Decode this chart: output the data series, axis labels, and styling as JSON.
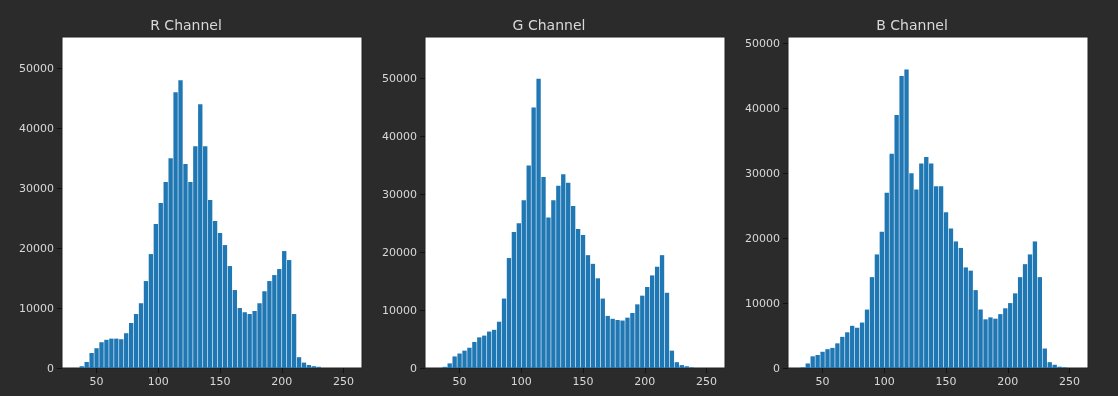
{
  "chart_data": [
    {
      "type": "histogram",
      "title": "R Channel",
      "color": "#1f77b4",
      "xlim": [
        22,
        265
      ],
      "xticks": [
        50,
        100,
        150,
        200,
        250
      ],
      "ylim": [
        0,
        55200
      ],
      "yticks": [
        0,
        10000,
        20000,
        30000,
        40000,
        50000
      ],
      "bins": [
        32,
        36,
        40,
        44,
        48,
        52,
        56,
        60,
        64,
        68,
        72,
        76,
        80,
        84,
        88,
        92,
        96,
        100,
        104,
        108,
        112,
        116,
        120,
        124,
        128,
        132,
        136,
        140,
        144,
        148,
        152,
        156,
        160,
        164,
        168,
        172,
        176,
        180,
        184,
        188,
        192,
        196,
        200,
        204,
        208,
        212,
        216,
        220,
        224,
        228,
        232,
        236
      ],
      "values": [
        0,
        300,
        1000,
        2500,
        3300,
        4300,
        4700,
        4900,
        4900,
        4800,
        5800,
        7500,
        9000,
        10800,
        14500,
        19000,
        24000,
        27500,
        31000,
        35000,
        46000,
        48000,
        34000,
        31000,
        37000,
        44000,
        37000,
        28000,
        24500,
        22500,
        20500,
        17000,
        13000,
        10000,
        9300,
        9000,
        9500,
        10800,
        12800,
        14500,
        15500,
        16500,
        19500,
        18000,
        9000,
        1800,
        900,
        500,
        300,
        200,
        0
      ]
    },
    {
      "type": "histogram",
      "title": "G Channel",
      "color": "#1f77b4",
      "xlim": [
        22,
        265
      ],
      "xticks": [
        50,
        100,
        150,
        200,
        250
      ],
      "ylim": [
        0,
        57200
      ],
      "yticks": [
        0,
        10000,
        20000,
        30000,
        40000,
        50000
      ],
      "bins": [
        32,
        36,
        40,
        44,
        48,
        52,
        56,
        60,
        64,
        68,
        72,
        76,
        80,
        84,
        88,
        92,
        96,
        100,
        104,
        108,
        112,
        116,
        120,
        124,
        128,
        132,
        136,
        140,
        144,
        148,
        152,
        156,
        160,
        164,
        168,
        172,
        176,
        180,
        184,
        188,
        192,
        196,
        200,
        204,
        208,
        212,
        216,
        220,
        224,
        228,
        232,
        236,
        240,
        244
      ],
      "values": [
        0,
        200,
        800,
        2000,
        2500,
        3000,
        3500,
        4500,
        5300,
        5600,
        6300,
        6600,
        8000,
        12000,
        19000,
        23500,
        25000,
        29000,
        35000,
        45000,
        50000,
        33000,
        26000,
        29000,
        31500,
        33500,
        32000,
        28000,
        24000,
        23000,
        19500,
        18000,
        15500,
        12000,
        9000,
        8500,
        8300,
        8200,
        8700,
        9500,
        11000,
        12500,
        14000,
        16000,
        17500,
        19500,
        13000,
        3000,
        1000,
        500,
        300,
        100,
        0
      ]
    },
    {
      "type": "histogram",
      "title": "B Channel",
      "color": "#1f77b4",
      "xlim": [
        22,
        265
      ],
      "xticks": [
        50,
        100,
        150,
        200,
        250
      ],
      "ylim": [
        0,
        51000
      ],
      "yticks": [
        0,
        10000,
        20000,
        30000,
        40000,
        50000
      ],
      "bins": [
        32,
        36,
        40,
        44,
        48,
        52,
        56,
        60,
        64,
        68,
        72,
        76,
        80,
        84,
        88,
        92,
        96,
        100,
        104,
        108,
        112,
        116,
        120,
        124,
        128,
        132,
        136,
        140,
        144,
        148,
        152,
        156,
        160,
        164,
        168,
        172,
        176,
        180,
        184,
        188,
        192,
        196,
        200,
        204,
        208,
        212,
        216,
        220,
        224,
        228,
        232,
        236,
        240,
        244,
        248
      ],
      "values": [
        100,
        700,
        1800,
        2000,
        2500,
        2900,
        3100,
        3800,
        4800,
        5500,
        6500,
        6200,
        7000,
        9000,
        14000,
        17500,
        21000,
        27000,
        33000,
        39000,
        45000,
        46000,
        30000,
        27500,
        31500,
        32500,
        31500,
        28000,
        28000,
        24000,
        21500,
        19500,
        18500,
        15500,
        15000,
        12000,
        9000,
        7500,
        7800,
        7600,
        8300,
        9200,
        10000,
        11500,
        14000,
        16000,
        17500,
        19500,
        14000,
        3000,
        900,
        500,
        200,
        100
      ]
    }
  ]
}
